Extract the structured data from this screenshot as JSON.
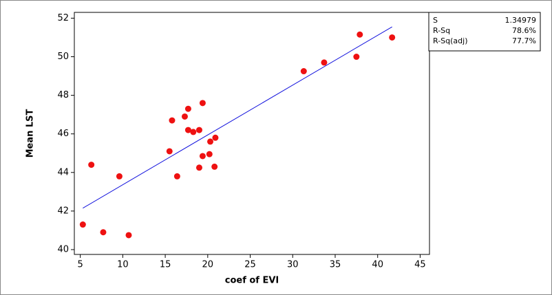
{
  "chart_data": {
    "type": "scatter",
    "x_label": "coef of EVI",
    "y_label": "Mean LST",
    "x": [
      5.3,
      6.3,
      7.7,
      9.6,
      10.7,
      16.4,
      15.5,
      15.8,
      17.3,
      17.7,
      17.7,
      18.3,
      19.0,
      19.4,
      19.0,
      19.4,
      20.2,
      20.3,
      20.8,
      20.9,
      31.3,
      33.7,
      37.5,
      37.9,
      41.7
    ],
    "values": [
      41.3,
      44.4,
      40.9,
      43.8,
      40.75,
      43.8,
      45.1,
      46.7,
      46.9,
      47.3,
      46.2,
      46.1,
      46.2,
      47.6,
      44.25,
      44.85,
      44.95,
      45.6,
      44.3,
      45.8,
      49.25,
      49.7,
      50.0,
      51.15,
      51.0
    ],
    "color": "#ee1111",
    "fit_line": {
      "x": [
        5.3,
        41.7
      ],
      "values": [
        42.15,
        51.55
      ],
      "color": "#1111dd"
    },
    "xlim": [
      4.3,
      46.1
    ],
    "ylim": [
      39.75,
      52.3
    ],
    "xticks": [
      5,
      10,
      15,
      20,
      25,
      30,
      35,
      40,
      45
    ],
    "yticks": [
      40,
      42,
      44,
      46,
      48,
      50,
      52
    ],
    "stats": [
      [
        "S",
        "1.34979"
      ],
      [
        "R-Sq",
        "78.6%"
      ],
      [
        "R-Sq(adj)",
        "77.7%"
      ]
    ]
  }
}
